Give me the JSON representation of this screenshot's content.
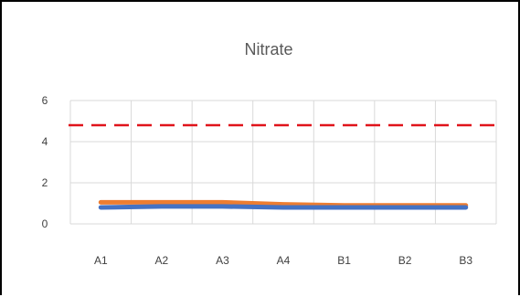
{
  "chart_data": {
    "type": "line",
    "title": "Nitrate",
    "xlabel": "",
    "ylabel": "",
    "categories": [
      "A1",
      "A2",
      "A3",
      "A4",
      "B1",
      "B2",
      "B3"
    ],
    "y_ticks": [
      "0",
      "2",
      "4",
      "6"
    ],
    "ylim": [
      0,
      6
    ],
    "grid": true,
    "legend": "none",
    "series": [
      {
        "color": "#ed7d31",
        "values": [
          1.05,
          1.05,
          1.05,
          0.95,
          0.9,
          0.9,
          0.9
        ]
      },
      {
        "color": "#4472c4",
        "values": [
          0.8,
          0.85,
          0.85,
          0.8,
          0.8,
          0.8,
          0.8
        ]
      }
    ],
    "reference_line": {
      "value": 4.8,
      "color": "#e0141b",
      "style": "dashed"
    }
  }
}
